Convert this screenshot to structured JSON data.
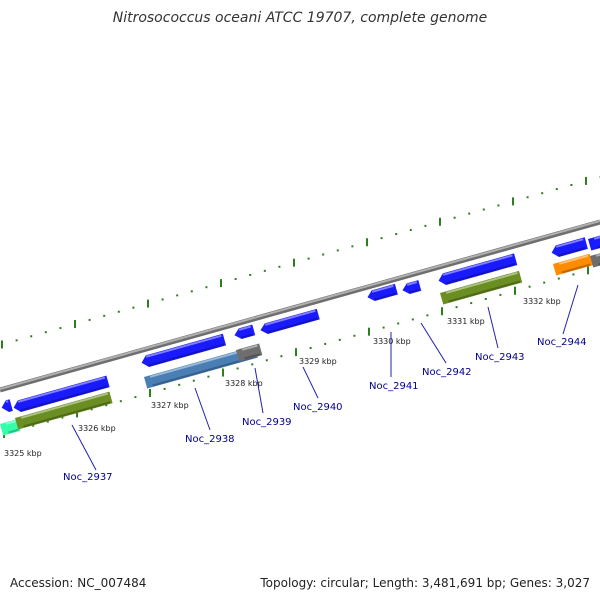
{
  "title": "Nitrosococcus oceani ATCC 19707, complete genome",
  "footer": {
    "accession": "Accession: NC_007484",
    "summary": "Topology: circular; Length: 3,481,691 bp; Genes: 3,027"
  },
  "kbp_labels": [
    "3325 kbp",
    "3326 kbp",
    "3327 kbp",
    "3328 kbp",
    "3329 kbp",
    "3330 kbp",
    "3331 kbp",
    "3332 kbp"
  ],
  "gene_labels": [
    "Noc_2937",
    "Noc_2938",
    "Noc_2939",
    "Noc_2940",
    "Noc_2941",
    "Noc_2942",
    "Noc_2943",
    "Noc_2944"
  ],
  "colors": {
    "backbone": "#8c8c8c",
    "tick": "#2e7d1e",
    "cds_blue": "#1a1aff",
    "cog_green": "#6b8e23",
    "cog_steel": "#4a7fb5",
    "cog_gray": "#6e6e6e",
    "cog_orange": "#ff8c00",
    "cog_cyan": "#33ffaa",
    "label_line": "#2222aa"
  }
}
